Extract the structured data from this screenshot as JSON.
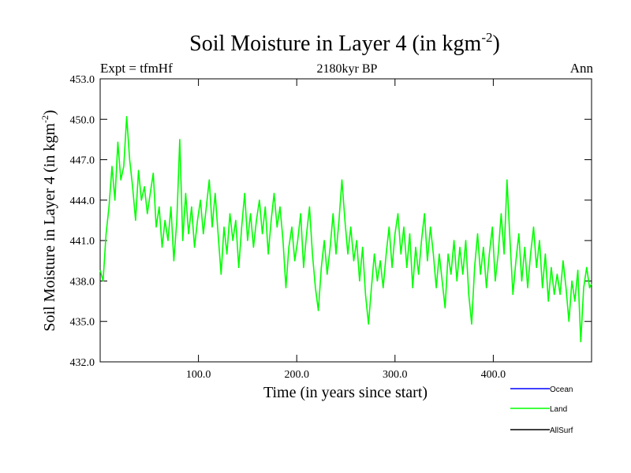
{
  "chart_data": {
    "type": "line",
    "title": "Soil Moisture in Layer 4 (in kgm",
    "title_sup": "-2",
    "title_end": ")",
    "subtitle": "2180kyr BP",
    "left_label": "Expt = tfmHf",
    "right_label": "Ann",
    "xlabel": "Time (in years since start)",
    "ylabel": "Soil Moisture in Layer 4 (in kgm",
    "ylabel_sup": "-2",
    "ylabel_end": ")",
    "xlim": [
      0,
      500
    ],
    "ylim": [
      432.0,
      453.0
    ],
    "x_ticks": [
      100,
      200,
      300,
      400
    ],
    "x_tick_labels": [
      "100.0",
      "200.0",
      "300.0",
      "400.0"
    ],
    "y_ticks": [
      432,
      435,
      438,
      441,
      444,
      447,
      450,
      453
    ],
    "y_tick_labels": [
      "432.0",
      "435.0",
      "438.0",
      "441.0",
      "444.0",
      "447.0",
      "450.0",
      "453.0"
    ],
    "series": [
      {
        "name": "Ocean",
        "color": "#0000ff",
        "values": []
      },
      {
        "name": "Land",
        "color": "#00ff00",
        "points": [
          [
            0,
            438.8
          ],
          [
            3,
            438.0
          ],
          [
            6,
            441.5
          ],
          [
            9,
            443.5
          ],
          [
            12,
            446.5
          ],
          [
            15,
            444.0
          ],
          [
            18,
            448.3
          ],
          [
            21,
            445.5
          ],
          [
            24,
            446.5
          ],
          [
            27,
            450.2
          ],
          [
            30,
            447.0
          ],
          [
            33,
            445.0
          ],
          [
            36,
            442.5
          ],
          [
            39,
            446.2
          ],
          [
            42,
            444.0
          ],
          [
            45,
            445.0
          ],
          [
            48,
            443.0
          ],
          [
            51,
            444.5
          ],
          [
            54,
            446.0
          ],
          [
            57,
            442.0
          ],
          [
            60,
            443.5
          ],
          [
            63,
            440.5
          ],
          [
            66,
            442.5
          ],
          [
            69,
            441.0
          ],
          [
            72,
            443.5
          ],
          [
            75,
            439.5
          ],
          [
            78,
            442.5
          ],
          [
            81,
            448.5
          ],
          [
            84,
            441.0
          ],
          [
            87,
            444.5
          ],
          [
            90,
            441.5
          ],
          [
            93,
            443.5
          ],
          [
            96,
            440.5
          ],
          [
            99,
            442.5
          ],
          [
            102,
            444.0
          ],
          [
            105,
            441.5
          ],
          [
            108,
            443.5
          ],
          [
            111,
            445.5
          ],
          [
            114,
            442.0
          ],
          [
            117,
            444.5
          ],
          [
            120,
            441.5
          ],
          [
            123,
            438.5
          ],
          [
            126,
            442.0
          ],
          [
            129,
            440.0
          ],
          [
            132,
            443.0
          ],
          [
            135,
            441.0
          ],
          [
            138,
            442.5
          ],
          [
            141,
            439.0
          ],
          [
            144,
            442.0
          ],
          [
            147,
            444.5
          ],
          [
            150,
            441.0
          ],
          [
            153,
            443.0
          ],
          [
            156,
            440.5
          ],
          [
            159,
            442.5
          ],
          [
            162,
            444.0
          ],
          [
            165,
            441.5
          ],
          [
            168,
            443.5
          ],
          [
            171,
            440.0
          ],
          [
            174,
            442.5
          ],
          [
            177,
            444.5
          ],
          [
            180,
            442.0
          ],
          [
            183,
            443.5
          ],
          [
            186,
            441.0
          ],
          [
            189,
            437.5
          ],
          [
            192,
            440.5
          ],
          [
            195,
            442.0
          ],
          [
            198,
            439.5
          ],
          [
            201,
            441.0
          ],
          [
            204,
            443.0
          ],
          [
            207,
            439.0
          ],
          [
            210,
            441.5
          ],
          [
            213,
            443.5
          ],
          [
            216,
            440.0
          ],
          [
            219,
            437.5
          ],
          [
            222,
            435.8
          ],
          [
            225,
            439.0
          ],
          [
            228,
            441.0
          ],
          [
            231,
            438.5
          ],
          [
            234,
            440.5
          ],
          [
            237,
            443.0
          ],
          [
            240,
            440.0
          ],
          [
            243,
            442.5
          ],
          [
            246,
            445.5
          ],
          [
            249,
            442.5
          ],
          [
            252,
            440.0
          ],
          [
            255,
            442.0
          ],
          [
            258,
            439.5
          ],
          [
            261,
            441.0
          ],
          [
            264,
            438.0
          ],
          [
            267,
            440.5
          ],
          [
            270,
            437.0
          ],
          [
            273,
            434.8
          ],
          [
            276,
            437.5
          ],
          [
            279,
            440.0
          ],
          [
            282,
            438.0
          ],
          [
            285,
            439.5
          ],
          [
            288,
            437.5
          ],
          [
            291,
            440.0
          ],
          [
            294,
            442.0
          ],
          [
            297,
            439.0
          ],
          [
            300,
            441.5
          ],
          [
            303,
            443.0
          ],
          [
            306,
            440.0
          ],
          [
            309,
            442.0
          ],
          [
            312,
            439.0
          ],
          [
            315,
            441.5
          ],
          [
            318,
            437.5
          ],
          [
            321,
            440.5
          ],
          [
            324,
            438.5
          ],
          [
            327,
            441.0
          ],
          [
            330,
            443.0
          ],
          [
            333,
            439.5
          ],
          [
            336,
            442.0
          ],
          [
            339,
            440.0
          ],
          [
            342,
            437.5
          ],
          [
            345,
            440.0
          ],
          [
            348,
            438.0
          ],
          [
            351,
            436.0
          ],
          [
            354,
            440.0
          ],
          [
            357,
            438.5
          ],
          [
            360,
            441.0
          ],
          [
            363,
            438.0
          ],
          [
            366,
            440.5
          ],
          [
            369,
            438.5
          ],
          [
            372,
            441.0
          ],
          [
            375,
            437.0
          ],
          [
            378,
            434.8
          ],
          [
            381,
            439.0
          ],
          [
            384,
            441.5
          ],
          [
            387,
            438.5
          ],
          [
            390,
            440.5
          ],
          [
            393,
            437.5
          ],
          [
            396,
            440.0
          ],
          [
            399,
            442.0
          ],
          [
            402,
            438.0
          ],
          [
            405,
            440.0
          ],
          [
            408,
            443.0
          ],
          [
            411,
            440.0
          ],
          [
            414,
            445.5
          ],
          [
            417,
            441.0
          ],
          [
            420,
            437.0
          ],
          [
            423,
            439.5
          ],
          [
            426,
            441.5
          ],
          [
            429,
            438.0
          ],
          [
            432,
            440.5
          ],
          [
            435,
            437.5
          ],
          [
            438,
            440.0
          ],
          [
            441,
            442.0
          ],
          [
            444,
            439.0
          ],
          [
            447,
            441.0
          ],
          [
            450,
            437.5
          ],
          [
            453,
            440.0
          ],
          [
            456,
            436.5
          ],
          [
            459,
            439.0
          ],
          [
            462,
            437.0
          ],
          [
            465,
            438.5
          ],
          [
            468,
            437.0
          ],
          [
            471,
            439.5
          ],
          [
            474,
            437.5
          ],
          [
            477,
            435.0
          ],
          [
            480,
            438.0
          ],
          [
            483,
            436.5
          ],
          [
            486,
            438.8
          ],
          [
            489,
            433.5
          ],
          [
            492,
            437.5
          ],
          [
            495,
            439.0
          ],
          [
            498,
            437.5
          ],
          [
            500,
            437.8
          ]
        ]
      },
      {
        "name": "AllSurf",
        "color": "#000000",
        "values": []
      }
    ],
    "legend": [
      "Ocean",
      "Land",
      "AllSurf"
    ],
    "legend_position": "bottom-right",
    "grid": false
  }
}
